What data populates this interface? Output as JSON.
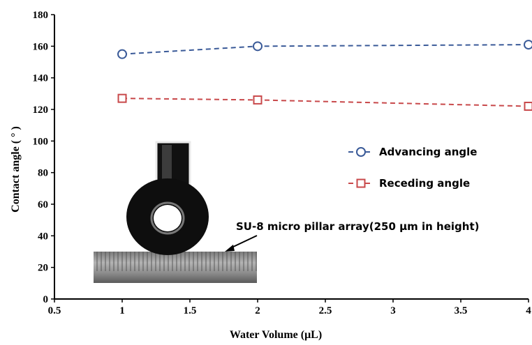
{
  "chart_data": {
    "type": "line",
    "xlabel": "Water Volume  (μL)",
    "ylabel": "Contact angle ( ° )",
    "xlim": [
      0.5,
      4
    ],
    "ylim": [
      0,
      180
    ],
    "x_ticks": [
      "0.5",
      "1",
      "1.5",
      "2",
      "2.5",
      "3",
      "3.5",
      "4"
    ],
    "y_ticks": [
      "0",
      "20",
      "40",
      "60",
      "80",
      "100",
      "120",
      "140",
      "160",
      "180"
    ],
    "grid": false,
    "legend_position": "center-right",
    "series": [
      {
        "name": "Advancing angle",
        "marker": "circle",
        "color": "#3a5a98",
        "x": [
          1,
          2,
          4
        ],
        "y": [
          155,
          160,
          161
        ]
      },
      {
        "name": "Receding angle",
        "marker": "square",
        "color": "#c8484a",
        "x": [
          1,
          2,
          4
        ],
        "y": [
          127,
          126,
          122
        ]
      }
    ],
    "annotation": "SU-8 micro pillar array(250 μm in height)"
  }
}
